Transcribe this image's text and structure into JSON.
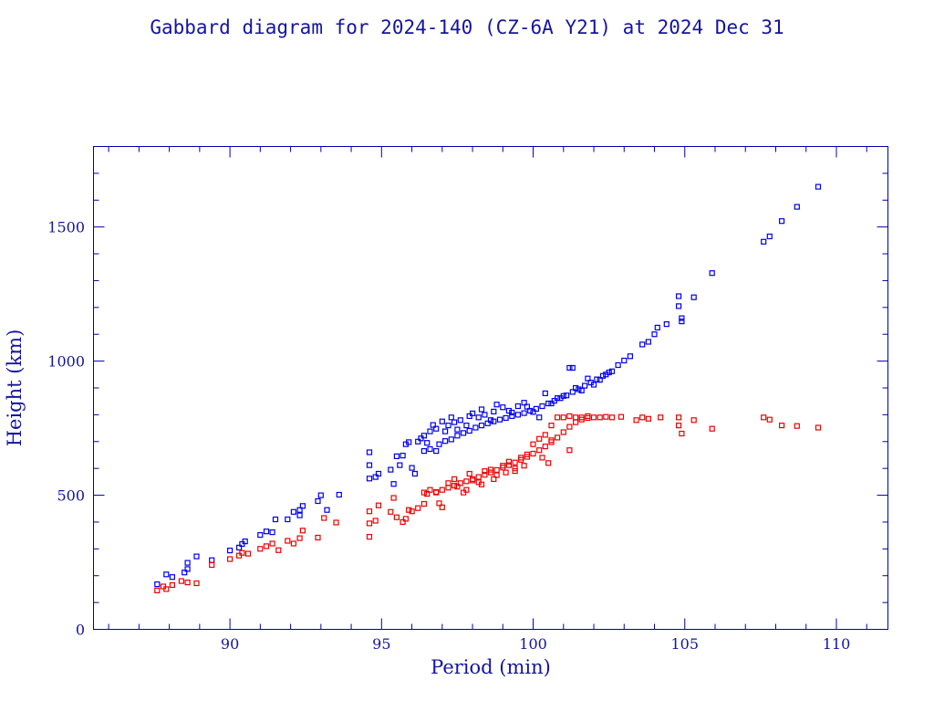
{
  "chart_data": {
    "type": "scatter",
    "title": "Gabbard diagram for 2024-140 (CZ-6A Y21) at 2024 Dec 31",
    "xlabel": "Period (min)",
    "ylabel": "Height (km)",
    "xlim": [
      85.5,
      111.7
    ],
    "ylim": [
      0,
      1800
    ],
    "x_ticks": [
      90,
      95,
      100,
      105,
      110
    ],
    "x_tick_labels": [
      "90",
      "95",
      "100",
      "105",
      "110"
    ],
    "y_ticks": [
      0,
      500,
      1000,
      1500
    ],
    "y_tick_labels": [
      "0",
      "500",
      "1000",
      "1500"
    ],
    "x_minor_step": 1,
    "y_minor_step": 100,
    "grid": false,
    "legend": "none",
    "colors": {
      "apogee": "#0000ee",
      "perigee": "#ee0000",
      "frame": "#0000aa",
      "text": "#1414a0"
    },
    "series": [
      {
        "color": "#0000ee",
        "points": [
          [
            87.6,
            168
          ],
          [
            87.9,
            205
          ],
          [
            88.1,
            195
          ],
          [
            88.5,
            212
          ],
          [
            88.6,
            225
          ],
          [
            88.6,
            248
          ],
          [
            88.9,
            272
          ],
          [
            89.4,
            258
          ],
          [
            90.0,
            294
          ],
          [
            90.3,
            305
          ],
          [
            90.4,
            318
          ],
          [
            90.5,
            328
          ],
          [
            91.0,
            352
          ],
          [
            91.2,
            365
          ],
          [
            91.4,
            362
          ],
          [
            91.5,
            410
          ],
          [
            91.9,
            410
          ],
          [
            92.1,
            438
          ],
          [
            92.3,
            445
          ],
          [
            92.3,
            425
          ],
          [
            92.4,
            460
          ],
          [
            92.9,
            478
          ],
          [
            93.0,
            500
          ],
          [
            93.2,
            445
          ],
          [
            93.6,
            502
          ],
          [
            94.6,
            562
          ],
          [
            94.6,
            612
          ],
          [
            94.6,
            660
          ],
          [
            94.8,
            568
          ],
          [
            94.9,
            580
          ],
          [
            95.3,
            595
          ],
          [
            95.4,
            542
          ],
          [
            95.5,
            645
          ],
          [
            95.6,
            612
          ],
          [
            95.7,
            648
          ],
          [
            95.8,
            690
          ],
          [
            95.9,
            698
          ],
          [
            96.0,
            602
          ],
          [
            96.1,
            580
          ],
          [
            96.2,
            700
          ],
          [
            96.3,
            712
          ],
          [
            96.4,
            722
          ],
          [
            96.5,
            695
          ],
          [
            96.6,
            738
          ],
          [
            96.7,
            762
          ],
          [
            96.8,
            748
          ],
          [
            96.8,
            665
          ],
          [
            97.0,
            775
          ],
          [
            97.1,
            738
          ],
          [
            97.2,
            760
          ],
          [
            97.3,
            790
          ],
          [
            97.4,
            772
          ],
          [
            97.5,
            745
          ],
          [
            97.6,
            780
          ],
          [
            97.8,
            760
          ],
          [
            97.9,
            795
          ],
          [
            98.0,
            805
          ],
          [
            98.2,
            790
          ],
          [
            98.3,
            820
          ],
          [
            98.4,
            800
          ],
          [
            98.6,
            780
          ],
          [
            98.7,
            812
          ],
          [
            98.8,
            838
          ],
          [
            99.0,
            828
          ],
          [
            99.2,
            815
          ],
          [
            99.3,
            808
          ],
          [
            99.5,
            832
          ],
          [
            99.7,
            845
          ],
          [
            99.8,
            830
          ],
          [
            100.0,
            810
          ],
          [
            100.2,
            790
          ],
          [
            100.4,
            880
          ],
          [
            100.6,
            842
          ],
          [
            100.8,
            862
          ],
          [
            101.0,
            870
          ],
          [
            101.2,
            975
          ],
          [
            101.3,
            975
          ],
          [
            101.4,
            900
          ],
          [
            101.6,
            890
          ],
          [
            101.8,
            935
          ],
          [
            102.0,
            912
          ],
          [
            102.2,
            930
          ],
          [
            102.4,
            950
          ],
          [
            102.6,
            962
          ],
          [
            102.8,
            985
          ],
          [
            103.0,
            1002
          ],
          [
            103.2,
            1018
          ],
          [
            103.6,
            1062
          ],
          [
            103.8,
            1072
          ],
          [
            104.0,
            1100
          ],
          [
            104.1,
            1125
          ],
          [
            104.4,
            1138
          ],
          [
            104.8,
            1242
          ],
          [
            104.8,
            1205
          ],
          [
            104.9,
            1148
          ],
          [
            104.9,
            1160
          ],
          [
            105.3,
            1238
          ],
          [
            105.9,
            1328
          ],
          [
            107.6,
            1445
          ],
          [
            107.8,
            1465
          ],
          [
            108.2,
            1522
          ],
          [
            108.7,
            1575
          ],
          [
            109.4,
            1650
          ],
          [
            96.4,
            665
          ],
          [
            96.6,
            672
          ],
          [
            96.9,
            690
          ],
          [
            97.1,
            702
          ],
          [
            97.3,
            708
          ],
          [
            97.5,
            722
          ],
          [
            97.7,
            732
          ],
          [
            97.9,
            740
          ],
          [
            98.1,
            752
          ],
          [
            98.3,
            760
          ],
          [
            98.5,
            768
          ],
          [
            98.7,
            775
          ],
          [
            98.9,
            782
          ],
          [
            99.1,
            788
          ],
          [
            99.3,
            795
          ],
          [
            99.5,
            800
          ],
          [
            99.7,
            806
          ],
          [
            99.9,
            815
          ],
          [
            100.1,
            822
          ],
          [
            100.3,
            832
          ],
          [
            100.5,
            842
          ],
          [
            100.7,
            852
          ],
          [
            100.9,
            862
          ],
          [
            101.1,
            872
          ],
          [
            101.3,
            885
          ],
          [
            101.5,
            895
          ],
          [
            101.7,
            908
          ],
          [
            101.9,
            920
          ],
          [
            102.1,
            932
          ],
          [
            102.3,
            945
          ],
          [
            102.5,
            958
          ]
        ]
      },
      {
        "color": "#ee0000",
        "points": [
          [
            87.6,
            145
          ],
          [
            87.8,
            160
          ],
          [
            87.9,
            150
          ],
          [
            88.1,
            165
          ],
          [
            88.4,
            180
          ],
          [
            88.6,
            175
          ],
          [
            88.9,
            172
          ],
          [
            89.4,
            240
          ],
          [
            90.0,
            262
          ],
          [
            90.3,
            275
          ],
          [
            90.4,
            285
          ],
          [
            90.6,
            282
          ],
          [
            91.0,
            300
          ],
          [
            91.2,
            310
          ],
          [
            91.4,
            320
          ],
          [
            91.6,
            295
          ],
          [
            91.9,
            330
          ],
          [
            92.1,
            320
          ],
          [
            92.3,
            340
          ],
          [
            92.4,
            368
          ],
          [
            92.9,
            342
          ],
          [
            93.1,
            415
          ],
          [
            93.5,
            398
          ],
          [
            94.6,
            345
          ],
          [
            94.6,
            395
          ],
          [
            94.6,
            440
          ],
          [
            94.8,
            405
          ],
          [
            94.9,
            462
          ],
          [
            95.3,
            438
          ],
          [
            95.4,
            490
          ],
          [
            95.5,
            418
          ],
          [
            95.7,
            400
          ],
          [
            95.8,
            412
          ],
          [
            95.9,
            445
          ],
          [
            96.0,
            440
          ],
          [
            96.2,
            452
          ],
          [
            96.4,
            468
          ],
          [
            96.4,
            510
          ],
          [
            96.6,
            520
          ],
          [
            96.8,
            510
          ],
          [
            96.9,
            470
          ],
          [
            97.0,
            455
          ],
          [
            97.2,
            545
          ],
          [
            97.4,
            560
          ],
          [
            97.5,
            532
          ],
          [
            97.7,
            510
          ],
          [
            97.9,
            580
          ],
          [
            98.0,
            555
          ],
          [
            98.2,
            548
          ],
          [
            98.4,
            590
          ],
          [
            98.6,
            595
          ],
          [
            98.8,
            575
          ],
          [
            99.0,
            610
          ],
          [
            99.2,
            625
          ],
          [
            99.4,
            600
          ],
          [
            99.6,
            640
          ],
          [
            99.8,
            652
          ],
          [
            100.0,
            690
          ],
          [
            100.2,
            710
          ],
          [
            100.4,
            725
          ],
          [
            100.6,
            760
          ],
          [
            100.8,
            790
          ],
          [
            101.0,
            790
          ],
          [
            101.2,
            795
          ],
          [
            101.4,
            790
          ],
          [
            101.6,
            790
          ],
          [
            101.8,
            795
          ],
          [
            102.0,
            790
          ],
          [
            102.2,
            790
          ],
          [
            102.4,
            792
          ],
          [
            102.6,
            790
          ],
          [
            102.9,
            792
          ],
          [
            103.4,
            780
          ],
          [
            103.6,
            790
          ],
          [
            103.8,
            785
          ],
          [
            104.2,
            790
          ],
          [
            104.8,
            790
          ],
          [
            104.8,
            760
          ],
          [
            104.9,
            730
          ],
          [
            105.3,
            780
          ],
          [
            105.9,
            748
          ],
          [
            107.6,
            790
          ],
          [
            107.8,
            782
          ],
          [
            108.2,
            760
          ],
          [
            108.7,
            758
          ],
          [
            109.4,
            752
          ],
          [
            101.2,
            668
          ],
          [
            100.6,
            705
          ],
          [
            96.5,
            505
          ],
          [
            96.8,
            512
          ],
          [
            97.0,
            520
          ],
          [
            97.2,
            528
          ],
          [
            97.4,
            536
          ],
          [
            97.6,
            545
          ],
          [
            97.8,
            552
          ],
          [
            98.0,
            560
          ],
          [
            98.2,
            568
          ],
          [
            98.4,
            576
          ],
          [
            98.6,
            585
          ],
          [
            98.8,
            594
          ],
          [
            99.0,
            603
          ],
          [
            99.2,
            612
          ],
          [
            99.4,
            622
          ],
          [
            99.6,
            632
          ],
          [
            99.8,
            643
          ],
          [
            100.0,
            655
          ],
          [
            100.2,
            668
          ],
          [
            100.4,
            682
          ],
          [
            100.6,
            698
          ],
          [
            100.8,
            715
          ],
          [
            101.0,
            735
          ],
          [
            101.2,
            755
          ],
          [
            101.4,
            772
          ],
          [
            101.6,
            782
          ],
          [
            101.8,
            788
          ],
          [
            99.1,
            585
          ],
          [
            98.7,
            560
          ],
          [
            98.3,
            540
          ],
          [
            97.8,
            520
          ],
          [
            100.3,
            640
          ],
          [
            100.5,
            620
          ],
          [
            99.7,
            610
          ],
          [
            99.4,
            590
          ]
        ]
      }
    ]
  }
}
